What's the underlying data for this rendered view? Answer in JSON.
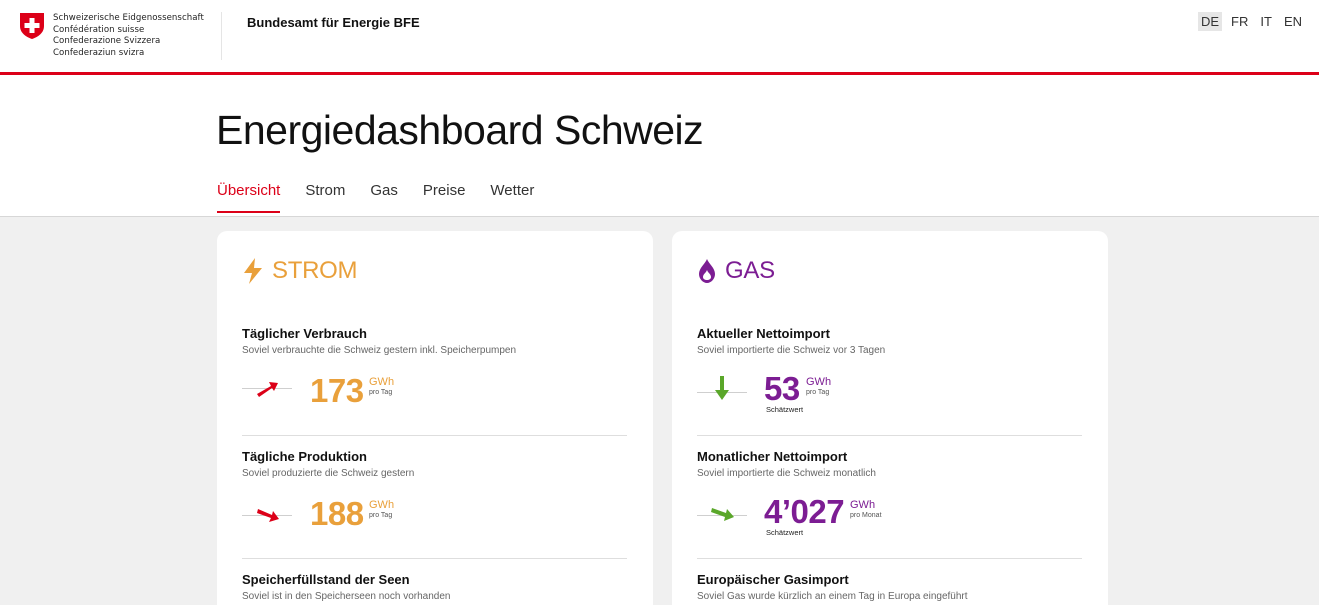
{
  "header": {
    "confederation": [
      "Schweizerische Eidgenossenschaft",
      "Confédération suisse",
      "Confederazione Svizzera",
      "Confederaziun svizra"
    ],
    "office": "Bundesamt für Energie BFE",
    "languages": [
      {
        "code": "DE",
        "active": true
      },
      {
        "code": "FR",
        "active": false
      },
      {
        "code": "IT",
        "active": false
      },
      {
        "code": "EN",
        "active": false
      }
    ]
  },
  "page": {
    "title": "Energiedashboard Schweiz",
    "tabs": [
      "Übersicht",
      "Strom",
      "Gas",
      "Preise",
      "Wetter"
    ],
    "active_tab": "Übersicht"
  },
  "strom": {
    "title": "STROM",
    "color": "#e9a03b",
    "icon": "lightning-icon",
    "metrics": [
      {
        "title": "Täglicher Verbrauch",
        "subtitle": "Soviel verbrauchte die Schweiz gestern inkl. Speicherpumpen",
        "value": "173",
        "unit": "GWh",
        "period": "pro Tag",
        "trend": "up",
        "trend_icon": "arrow-up-right-icon",
        "trend_color": "#dc0018"
      },
      {
        "title": "Tägliche Produktion",
        "subtitle": "Soviel produzierte die Schweiz gestern",
        "value": "188",
        "unit": "GWh",
        "period": "pro Tag",
        "trend": "down",
        "trend_icon": "arrow-down-right-icon",
        "trend_color": "#dc0018"
      },
      {
        "title": "Speicherfüllstand der Seen",
        "subtitle": "Soviel ist in den Speicherseen noch vorhanden"
      }
    ]
  },
  "gas": {
    "title": "GAS",
    "color": "#7c1d93",
    "icon": "flame-icon",
    "metrics": [
      {
        "title": "Aktueller Nettoimport",
        "subtitle": "Soviel importierte die Schweiz vor 3 Tagen",
        "value": "53",
        "unit": "GWh",
        "period": "pro Tag",
        "note": "Schätzwert",
        "trend": "down",
        "trend_icon": "arrow-down-icon",
        "trend_color": "#5aa72a"
      },
      {
        "title": "Monatlicher Nettoimport",
        "subtitle": "Soviel importierte die Schweiz monatlich",
        "value": "4’027",
        "unit": "GWh",
        "period": "pro Monat",
        "note": "Schätzwert",
        "trend": "down-right",
        "trend_icon": "arrow-down-right-icon",
        "trend_color": "#5aa72a"
      },
      {
        "title": "Europäischer Gasimport",
        "subtitle": "Soviel Gas wurde kürzlich an einem Tag in Europa eingeführt"
      }
    ]
  }
}
